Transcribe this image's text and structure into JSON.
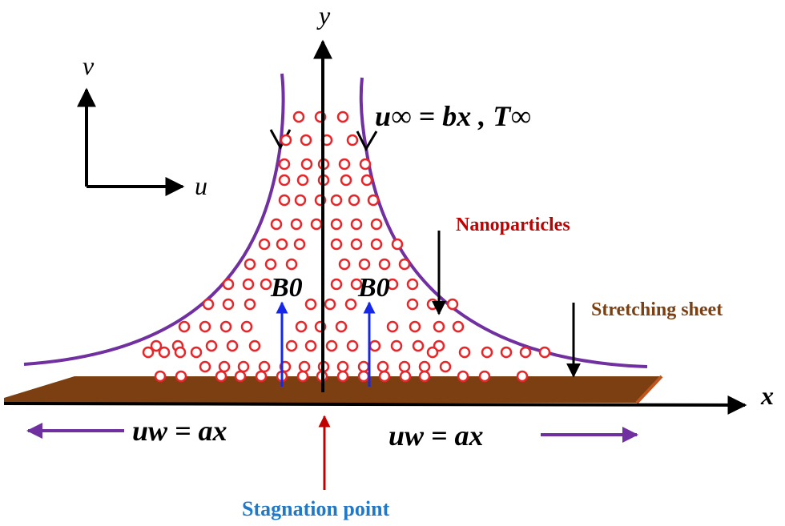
{
  "labels": {
    "axis_y": "y",
    "axis_x": "x",
    "coord_v": "v",
    "coord_u": "u",
    "free_stream": "u∞ = bx , T∞",
    "nanoparticles": "Nanoparticles",
    "stretching_sheet": "Stretching sheet",
    "magnetic_left": "B0",
    "magnetic_right": "B0",
    "wall_velocity_left": "uw = ax",
    "wall_velocity_right": "uw = ax",
    "stagnation_point": "Stagnation point"
  },
  "colors": {
    "streamline": "#7030a0",
    "sheet": "#7b3f12",
    "sheet_edge": "#c0561e",
    "particle": "#e8262a",
    "magnetic_arrow": "#1428e6",
    "stagnation_arrow": "#c00000",
    "stagnation_text": "#1f78c8",
    "nanoparticles_text": "#c00000",
    "sheet_text": "#7b3f12",
    "axis": "#000000"
  }
}
